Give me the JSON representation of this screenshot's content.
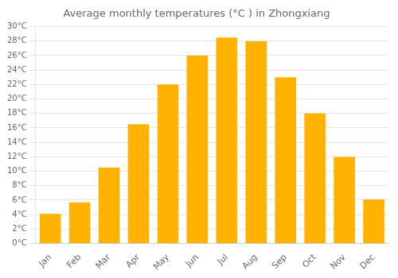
{
  "chart_data": {
    "type": "bar",
    "title": "Average monthly temperatures (°C ) in Zhongxiang",
    "categories": [
      "Jan",
      "Feb",
      "Mar",
      "Apr",
      "May",
      "Jun",
      "Jul",
      "Aug",
      "Sep",
      "Oct",
      "Nov",
      "Dec"
    ],
    "values": [
      4.1,
      5.7,
      10.5,
      16.5,
      22.0,
      26.0,
      28.5,
      28.0,
      23.0,
      18.0,
      12.0,
      6.1
    ],
    "color": "#FFB300",
    "ylim": [
      0,
      30
    ],
    "yticks": [
      {
        "value": 0,
        "label": "0°C"
      },
      {
        "value": 2,
        "label": "2°C"
      },
      {
        "value": 4,
        "label": "4°C"
      },
      {
        "value": 6,
        "label": "6°C"
      },
      {
        "value": 8,
        "label": "8°C"
      },
      {
        "value": 10,
        "label": "10°C"
      },
      {
        "value": 12,
        "label": "12°C"
      },
      {
        "value": 14,
        "label": "14°C"
      },
      {
        "value": 16,
        "label": "16°C"
      },
      {
        "value": 18,
        "label": "18°C"
      },
      {
        "value": 20,
        "label": "20°C"
      },
      {
        "value": 22,
        "label": "22°C"
      },
      {
        "value": 24,
        "label": "24°C"
      },
      {
        "value": 26,
        "label": "26°C"
      },
      {
        "value": 28,
        "label": "28°C"
      },
      {
        "value": 30,
        "label": "30°C"
      }
    ],
    "grid": "y"
  }
}
